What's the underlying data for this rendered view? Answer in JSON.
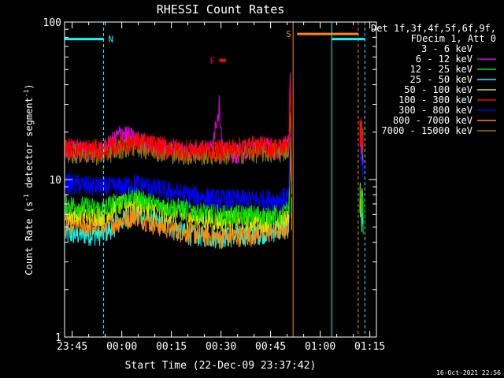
{
  "chart_data": {
    "type": "line",
    "title": "RHESSI Count Rates",
    "xlabel": "Start Time (22-Dec-09 23:37:42)",
    "ylabel": "Count Rate (s⁻¹ detector segment⁻¹)",
    "ylabel_main": "Count Rate (s",
    "ylabel_sup1": "-1",
    "ylabel_mid": " detector segment",
    "ylabel_sup2": "-1",
    "ylabel_end": ")",
    "yscale": "log",
    "ylim": [
      1,
      100
    ],
    "xlim_minutes": [
      -17.3,
      77
    ],
    "x_tick_labels": [
      "23:45",
      "00:00",
      "00:15",
      "00:30",
      "00:45",
      "01:00",
      "01:15"
    ],
    "x_ticks_minutes": [
      -15,
      0,
      15,
      30,
      45,
      60,
      75
    ],
    "y_tick_labels": [
      "1",
      "10",
      "100"
    ],
    "y_ticks": [
      1,
      10,
      100
    ],
    "legend_header": [
      "Det 1f,3f,4f,5f,6f,9f,",
      "FDecim 1, Att 0"
    ],
    "legend_placement": "right",
    "series": [
      {
        "name": "3 - 6 keV",
        "color": "#000000",
        "points": [
          [
            -17,
            13
          ],
          [
            -6,
            12.5
          ],
          [
            0,
            19
          ],
          [
            4,
            16
          ],
          [
            10,
            13.5
          ],
          [
            20,
            10.5
          ],
          [
            26,
            10.5
          ],
          [
            29,
            21
          ],
          [
            30,
            27
          ],
          [
            31,
            12
          ],
          [
            36,
            11.5
          ],
          [
            41,
            11
          ],
          [
            48,
            11.5
          ],
          [
            50.5,
            14
          ],
          [
            51,
            42
          ],
          [
            51.5,
            5
          ]
        ],
        "tail": [
          [
            72,
            20
          ],
          [
            73,
            16
          ]
        ]
      },
      {
        "name": "6 - 12 keV",
        "color": "#e000e0",
        "points": [
          [
            -17,
            15.5
          ],
          [
            -6,
            15
          ],
          [
            0,
            20
          ],
          [
            4,
            18
          ],
          [
            10,
            16
          ],
          [
            20,
            15
          ],
          [
            27,
            15.5
          ],
          [
            29.5,
            30
          ],
          [
            30.5,
            15
          ],
          [
            36,
            15
          ],
          [
            41,
            16.5
          ],
          [
            48,
            15.5
          ],
          [
            50.5,
            17
          ],
          [
            51,
            55
          ],
          [
            51.5,
            6
          ]
        ],
        "tail": [
          [
            72,
            20
          ],
          [
            73,
            16
          ]
        ]
      },
      {
        "name": "12 - 25 keV",
        "color": "#00e000",
        "points": [
          [
            -17,
            7
          ],
          [
            -6,
            6.5
          ],
          [
            0,
            7.5
          ],
          [
            4,
            8
          ],
          [
            10,
            7
          ],
          [
            20,
            6.5
          ],
          [
            30,
            6
          ],
          [
            40,
            6
          ],
          [
            48,
            6
          ],
          [
            50.5,
            6.5
          ],
          [
            51,
            30
          ],
          [
            51.5,
            5
          ]
        ],
        "tail": [
          [
            72,
            8
          ],
          [
            73,
            6
          ]
        ]
      },
      {
        "name": "25 - 50 keV",
        "color": "#00ffff",
        "points": [
          [
            -17,
            4.5
          ],
          [
            -6,
            4.5
          ],
          [
            0,
            5.5
          ],
          [
            4,
            6
          ],
          [
            10,
            5.5
          ],
          [
            20,
            4.5
          ],
          [
            30,
            4.3
          ],
          [
            40,
            4.5
          ],
          [
            48,
            4.8
          ],
          [
            50.5,
            5
          ],
          [
            51,
            25
          ],
          [
            51.5,
            4
          ]
        ],
        "tail": [
          [
            72,
            7
          ],
          [
            73,
            5
          ]
        ]
      },
      {
        "name": "50 - 100 keV",
        "color": "#e0e000",
        "points": [
          [
            -17,
            6
          ],
          [
            -6,
            6
          ],
          [
            0,
            7
          ],
          [
            4,
            7.2
          ],
          [
            10,
            6.5
          ],
          [
            20,
            5.8
          ],
          [
            30,
            5.5
          ],
          [
            40,
            5.5
          ],
          [
            48,
            5.5
          ],
          [
            50.5,
            6
          ],
          [
            51,
            25
          ],
          [
            51.5,
            5
          ]
        ],
        "tail": [
          [
            72,
            8
          ],
          [
            73,
            6
          ]
        ]
      },
      {
        "name": "100 - 300 keV",
        "color": "#ff0000",
        "points": [
          [
            -17,
            16
          ],
          [
            -6,
            15.5
          ],
          [
            0,
            17
          ],
          [
            4,
            17.5
          ],
          [
            10,
            16.5
          ],
          [
            20,
            15.5
          ],
          [
            30,
            15.5
          ],
          [
            40,
            16.5
          ],
          [
            48,
            16
          ],
          [
            50.5,
            17
          ],
          [
            51,
            45
          ],
          [
            51.5,
            6
          ]
        ],
        "tail": [
          [
            72,
            22
          ],
          [
            73,
            18
          ]
        ]
      },
      {
        "name": "300 - 800 keV",
        "color": "#0000ff",
        "points": [
          [
            -17,
            9.5
          ],
          [
            -6,
            9
          ],
          [
            0,
            9
          ],
          [
            4,
            9.5
          ],
          [
            10,
            8.8
          ],
          [
            20,
            8
          ],
          [
            30,
            7.5
          ],
          [
            40,
            7.5
          ],
          [
            48,
            7.5
          ],
          [
            50.5,
            8
          ],
          [
            51,
            25
          ],
          [
            51.5,
            6
          ]
        ],
        "tail": [
          [
            72,
            15
          ],
          [
            73,
            12
          ]
        ]
      },
      {
        "name": "800 - 7000 keV",
        "color": "#ff8800",
        "points": [
          [
            -17,
            5.2
          ],
          [
            -6,
            5
          ],
          [
            0,
            5.5
          ],
          [
            4,
            6
          ],
          [
            10,
            5.2
          ],
          [
            20,
            4.6
          ],
          [
            30,
            4.3
          ],
          [
            40,
            4.5
          ],
          [
            48,
            4.8
          ],
          [
            50.5,
            5
          ],
          [
            51,
            20
          ],
          [
            51.5,
            4
          ]
        ],
        "tail": [
          [
            72,
            8
          ],
          [
            73,
            7
          ]
        ]
      },
      {
        "name": "7000 - 15000 keV",
        "color": "#808000",
        "points": [
          [
            -17,
            15
          ],
          [
            -6,
            14.5
          ],
          [
            0,
            16
          ],
          [
            4,
            16.5
          ],
          [
            10,
            15.5
          ],
          [
            20,
            14.5
          ],
          [
            30,
            14.5
          ],
          [
            40,
            15
          ],
          [
            48,
            15
          ],
          [
            50.5,
            16
          ],
          [
            51,
            30
          ],
          [
            51.5,
            5
          ]
        ],
        "tail": [
          [
            72,
            20
          ],
          [
            73,
            17
          ]
        ]
      }
    ],
    "flags": [
      {
        "label": "N",
        "color": "#00ffff",
        "level": 78,
        "start": -17.3,
        "end": -5.5
      },
      {
        "label": "S",
        "color": "#ff8800",
        "level": 84,
        "start": 53,
        "end": 71.5
      },
      {
        "label": "F",
        "color": "#ff0000",
        "level": 57,
        "start": 29.5,
        "end": 31.5
      }
    ],
    "second_flag_N": {
      "color": "#00ffff",
      "level": 78,
      "start": 63.5,
      "end": 73.5
    },
    "vertical_lines": [
      {
        "x": -17.3,
        "color": "#00ffff",
        "style": "solid"
      },
      {
        "x": -5.5,
        "color": "#00ffff",
        "style": "dashed"
      },
      {
        "x": 51.8,
        "color": "#ff8800",
        "style": "solid"
      },
      {
        "x": 63.5,
        "color": "#00ffff",
        "style": "solid"
      },
      {
        "x": 71.5,
        "color": "#ff8800",
        "style": "dashed"
      },
      {
        "x": 73.5,
        "color": "#00ffff",
        "style": "dashed"
      }
    ],
    "footer_timestamp": "16-Oct-2021 22:56"
  }
}
